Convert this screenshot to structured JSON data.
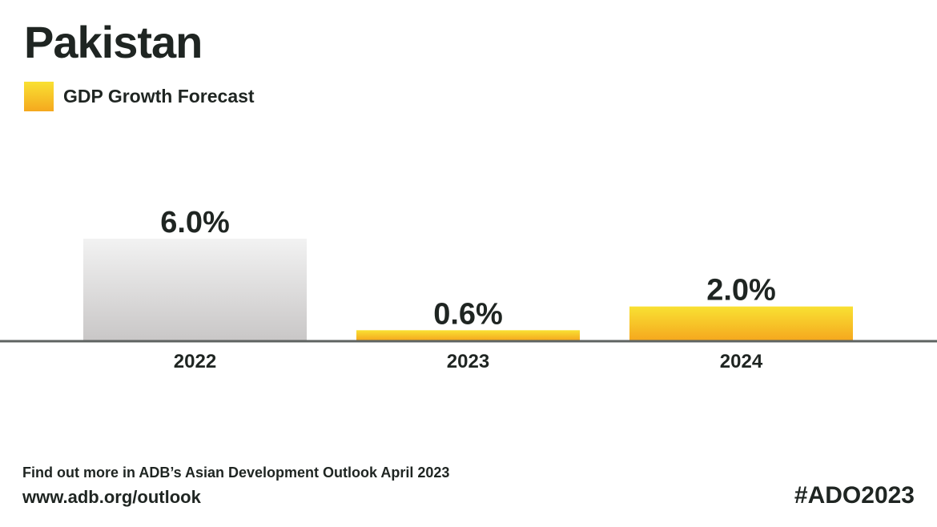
{
  "title": "Pakistan",
  "legend": {
    "label": "GDP Growth Forecast"
  },
  "colors": {
    "actual_top": "#f2f2f2",
    "actual_bottom": "#c9c7c7",
    "forecast_top": "#f9e133",
    "forecast_bottom": "#f5a81e",
    "baseline": "#5e6361",
    "text": "#1f2522"
  },
  "chart_data": {
    "type": "bar",
    "categories": [
      "2022",
      "2023",
      "2024"
    ],
    "values": [
      6.0,
      0.6,
      2.0
    ],
    "value_labels": [
      "6.0%",
      "0.6%",
      "2.0%"
    ],
    "bar_kinds": [
      "actual",
      "forecast",
      "forecast"
    ],
    "ylim": [
      0,
      6.0
    ],
    "grid": false,
    "legend_position": "top-left"
  },
  "footer": {
    "note": "Find out more in ADB’s Asian Development Outlook April 2023",
    "url": "www.adb.org/outlook",
    "hashtag": "#ADO2023"
  }
}
